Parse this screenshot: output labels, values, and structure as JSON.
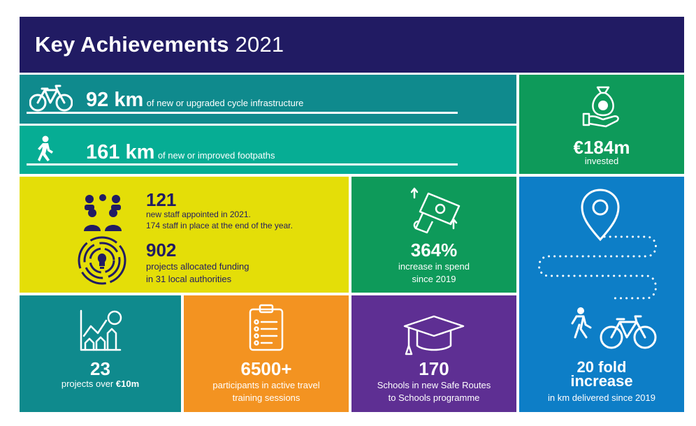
{
  "header": {
    "title_bold": "Key Achievements",
    "title_year": "2021"
  },
  "colors": {
    "navy": "#211b63",
    "teal_dark": "#0f8a8d",
    "teal": "#06ad94",
    "green": "#0e9a5a",
    "yellow": "#e4de08",
    "blue": "#0d7ec7",
    "orange": "#f39321",
    "purple": "#5e2f93",
    "teal_tile": "#0f8a8d"
  },
  "cycle": {
    "icon": "bicycle-icon",
    "value": "92 km",
    "text": "of new or upgraded cycle infrastructure"
  },
  "footpath": {
    "icon": "walking-person-icon",
    "value": "161 km",
    "text": "of new or improved footpaths"
  },
  "invested": {
    "icon": "money-bag-hand-icon",
    "value": "€184m",
    "text": "invested"
  },
  "staff": {
    "icon": "people-group-icon",
    "value": "121",
    "line1": "new staff  appointed in 2021.",
    "line2": "174 staff in place at the end of the year."
  },
  "projects": {
    "icon": "lightbulb-maze-icon",
    "value": "902",
    "line1": "projects allocated funding",
    "line2": "in 31 local authorities"
  },
  "spend": {
    "icon": "money-rising-icon",
    "value": "364%",
    "line1": "increase in spend",
    "line2": "since 2019"
  },
  "increase": {
    "icon": "location-pin-icon",
    "icon2": "walk-cycle-icon",
    "value_line1": "20 fold",
    "value_line2": "increase",
    "text": "in km delivered since 2019"
  },
  "projects10m": {
    "icon": "growth-chart-icon",
    "value": "23",
    "text_prefix": "projects over ",
    "text_bold": "€10m"
  },
  "participants": {
    "icon": "clipboard-list-icon",
    "value": "6500+",
    "line1": "participants in active travel",
    "line2": "training sessions"
  },
  "schools": {
    "icon": "graduation-cap-icon",
    "value": "170",
    "line1": "Schools in new Safe Routes",
    "line2": "to Schools programme"
  }
}
